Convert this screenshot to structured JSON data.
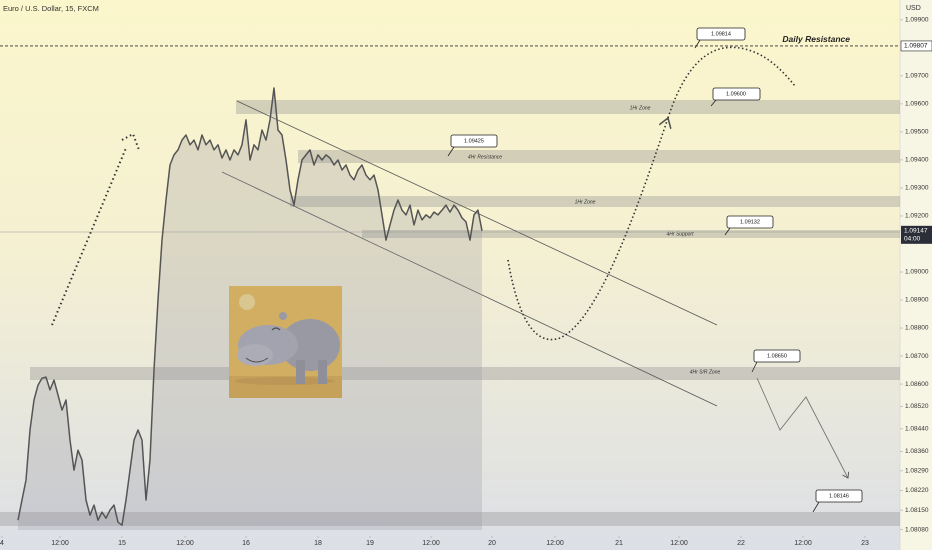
{
  "chart_data": {
    "type": "line",
    "title": "Euro / U.S. Dollar, 15, FXCM",
    "currency": "USD",
    "color": "#555555",
    "x": [
      4,
      5,
      6,
      7,
      8,
      9,
      10,
      11,
      12,
      13,
      14,
      15,
      16,
      17,
      18,
      19,
      20,
      21,
      22,
      23,
      24,
      25,
      26,
      27,
      28,
      29,
      30,
      31,
      32,
      33,
      34,
      35,
      36,
      37,
      38,
      39,
      40,
      41,
      42,
      43,
      44,
      45,
      46,
      47,
      48,
      49,
      50,
      51,
      52,
      53,
      54,
      55,
      56,
      57,
      58,
      59,
      60,
      61,
      62,
      63,
      64,
      65,
      66,
      67,
      68,
      69,
      70,
      71,
      72,
      73,
      74,
      75,
      76,
      77,
      78,
      79,
      80,
      81,
      82,
      83,
      84,
      85,
      86,
      87,
      88,
      89,
      90,
      91,
      92,
      93,
      94,
      95,
      96,
      97,
      98,
      99,
      100,
      101,
      102,
      103,
      104,
      105,
      106,
      107,
      108,
      109,
      110,
      111,
      112,
      113,
      114,
      115,
      116,
      117,
      118,
      119,
      120
    ],
    "values": [
      1.08114,
      1.08186,
      1.08257,
      1.08436,
      1.08543,
      1.08596,
      1.08621,
      1.08625,
      1.08579,
      1.08614,
      1.08561,
      1.08507,
      1.08543,
      1.084,
      1.08293,
      1.08364,
      1.08329,
      1.08186,
      1.08132,
      1.08168,
      1.08114,
      1.08143,
      1.08121,
      1.0815,
      1.08168,
      1.08107,
      1.08096,
      1.08186,
      1.08293,
      1.084,
      1.08436,
      1.084,
      1.08186,
      1.08329,
      1.0865,
      1.089,
      1.09114,
      1.09257,
      1.09382,
      1.09418,
      1.09436,
      1.09471,
      1.09489,
      1.09454,
      1.09471,
      1.09436,
      1.09489,
      1.09454,
      1.09471,
      1.09436,
      1.09454,
      1.09407,
      1.09436,
      1.094,
      1.09436,
      1.09418,
      1.09454,
      1.09543,
      1.094,
      1.09454,
      1.09436,
      1.09507,
      1.09471,
      1.09543,
      1.09657,
      1.09507,
      1.09489,
      1.094,
      1.09293,
      1.09239,
      1.09329,
      1.094,
      1.09418,
      1.09436,
      1.09382,
      1.09418,
      1.094,
      1.09418,
      1.09407,
      1.09382,
      1.094,
      1.09364,
      1.09382,
      1.09346,
      1.09329,
      1.09364,
      1.09382,
      1.09346,
      1.09329,
      1.09346,
      1.09293,
      1.09204,
      1.09114,
      1.09168,
      1.09221,
      1.09257,
      1.09221,
      1.09204,
      1.09239,
      1.09168,
      1.09221,
      1.09186,
      1.09204,
      1.09193,
      1.09214,
      1.09204,
      1.09221,
      1.09239,
      1.09214,
      1.09239,
      1.09221,
      1.09193,
      1.09179,
      1.09114,
      1.09204,
      1.09221,
      1.09147
    ],
    "xlim": [
      0,
      224.5
    ],
    "xticks": [
      {
        "value": 0,
        "label": "4"
      },
      {
        "value": 14.5,
        "label": "12:00"
      },
      {
        "value": 30,
        "label": "15"
      },
      {
        "value": 45.75,
        "label": "12:00"
      },
      {
        "value": 61,
        "label": "16"
      },
      {
        "value": 79,
        "label": "18"
      },
      {
        "value": 92,
        "label": "19"
      },
      {
        "value": 107.25,
        "label": "12:00"
      },
      {
        "value": 122.5,
        "label": "20"
      },
      {
        "value": 138.25,
        "label": "12:00"
      },
      {
        "value": 154.25,
        "label": "21"
      },
      {
        "value": 169.25,
        "label": "12:00"
      },
      {
        "value": 184.75,
        "label": "22"
      },
      {
        "value": 200.25,
        "label": "12:00"
      },
      {
        "value": 215.75,
        "label": "23"
      }
    ],
    "ylim": [
      1.08079,
      1.09971
    ],
    "yticks": [
      {
        "value": 1.099,
        "label": "1.09900"
      },
      {
        "value": 1.097,
        "label": "1.09700"
      },
      {
        "value": 1.096,
        "label": "1.09600"
      },
      {
        "value": 1.095,
        "label": "1.09500"
      },
      {
        "value": 1.094,
        "label": "1.09400"
      },
      {
        "value": 1.093,
        "label": "1.09300"
      },
      {
        "value": 1.092,
        "label": "1.09200"
      },
      {
        "value": 1.09,
        "label": "1.09000"
      },
      {
        "value": 1.089,
        "label": "1.08900"
      },
      {
        "value": 1.088,
        "label": "1.08800"
      },
      {
        "value": 1.087,
        "label": "1.08700"
      },
      {
        "value": 1.086,
        "label": "1.08600"
      },
      {
        "value": 1.0852,
        "label": "1.08520"
      },
      {
        "value": 1.0844,
        "label": "1.08440"
      },
      {
        "value": 1.0836,
        "label": "1.08360"
      },
      {
        "value": 1.0829,
        "label": "1.08290"
      },
      {
        "value": 1.0822,
        "label": "1.08220"
      },
      {
        "value": 1.0815,
        "label": "1.08150"
      },
      {
        "value": 1.0808,
        "label": "1.08080"
      }
    ],
    "daily_resistance": {
      "name": "Daily Resistance",
      "value": 1.09807,
      "label": "1.09807"
    },
    "last_price": {
      "value": 1.09147,
      "label": "1.09147",
      "time": "04:00"
    },
    "zones": [
      "1Hr Zone",
      "4Hr Resistance",
      "1Hr Zone",
      "4Hr Support",
      "4Hr S/R Zone"
    ],
    "callouts": [
      "1.09814",
      "1.09600",
      "1.09425",
      "1.09132",
      "1.08650",
      "1.08146"
    ]
  }
}
